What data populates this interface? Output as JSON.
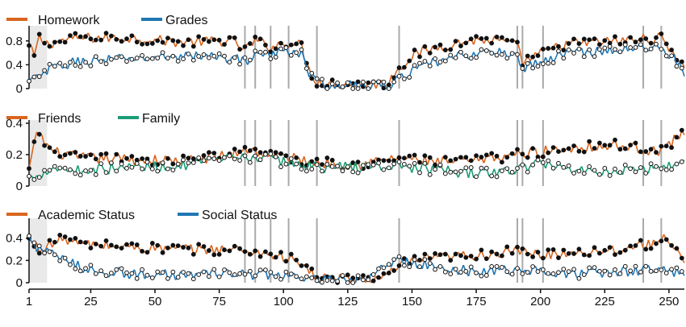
{
  "chart_data": {
    "type": "line",
    "x_range": [
      1,
      256
    ],
    "x_ticks": [
      1,
      25,
      50,
      75,
      100,
      125,
      150,
      175,
      200,
      225,
      250
    ],
    "shaded_x_range": [
      1,
      8
    ],
    "vertical_marker_x": [
      85,
      89,
      95,
      102,
      113,
      145,
      191,
      193,
      201,
      240,
      247
    ],
    "colors": {
      "orange": "#d9661f",
      "blue": "#1f77b4",
      "green": "#1b9e77",
      "dark": "#111111",
      "marker_line": "#aaaaaa",
      "shade": "#e9e9e9"
    },
    "panels": [
      {
        "ylim": [
          0,
          1
        ],
        "y_ticks": [
          "0",
          "0.4",
          "0.8"
        ],
        "y_tick_values": [
          0,
          0.4,
          0.8
        ],
        "series": [
          {
            "name": "Homework",
            "color": "#d9661f",
            "marker": "filled",
            "keyframes": [
              [
                1,
                0.7
              ],
              [
                3,
                0.55
              ],
              [
                5,
                0.85
              ],
              [
                8,
                0.75
              ],
              [
                20,
                0.85
              ],
              [
                40,
                0.85
              ],
              [
                60,
                0.78
              ],
              [
                80,
                0.8
              ],
              [
                85,
                0.65
              ],
              [
                89,
                0.8
              ],
              [
                95,
                0.7
              ],
              [
                102,
                0.78
              ],
              [
                107,
                0.72
              ],
              [
                110,
                0.3
              ],
              [
                113,
                0.12
              ],
              [
                120,
                0.08
              ],
              [
                130,
                0.07
              ],
              [
                140,
                0.08
              ],
              [
                145,
                0.35
              ],
              [
                150,
                0.55
              ],
              [
                160,
                0.7
              ],
              [
                175,
                0.82
              ],
              [
                185,
                0.8
              ],
              [
                191,
                0.7
              ],
              [
                193,
                0.45
              ],
              [
                201,
                0.6
              ],
              [
                210,
                0.75
              ],
              [
                230,
                0.8
              ],
              [
                247,
                0.85
              ],
              [
                252,
                0.6
              ],
              [
                256,
                0.35
              ]
            ]
          },
          {
            "name": "Grades",
            "color": "#1f77b4",
            "marker": "open",
            "keyframes": [
              [
                1,
                0.1
              ],
              [
                5,
                0.2
              ],
              [
                10,
                0.35
              ],
              [
                20,
                0.45
              ],
              [
                40,
                0.5
              ],
              [
                60,
                0.55
              ],
              [
                80,
                0.52
              ],
              [
                85,
                0.45
              ],
              [
                89,
                0.6
              ],
              [
                95,
                0.55
              ],
              [
                102,
                0.65
              ],
              [
                107,
                0.6
              ],
              [
                110,
                0.25
              ],
              [
                113,
                0.08
              ],
              [
                120,
                0.05
              ],
              [
                130,
                0.04
              ],
              [
                140,
                0.05
              ],
              [
                145,
                0.15
              ],
              [
                150,
                0.3
              ],
              [
                160,
                0.45
              ],
              [
                175,
                0.6
              ],
              [
                185,
                0.6
              ],
              [
                191,
                0.55
              ],
              [
                193,
                0.35
              ],
              [
                201,
                0.45
              ],
              [
                210,
                0.6
              ],
              [
                230,
                0.65
              ],
              [
                247,
                0.7
              ],
              [
                252,
                0.5
              ],
              [
                256,
                0.28
              ]
            ]
          }
        ]
      },
      {
        "ylim": [
          0,
          0.4
        ],
        "y_ticks": [
          "0",
          "0.2",
          "0.4"
        ],
        "y_tick_values": [
          0,
          0.2,
          0.4
        ],
        "series": [
          {
            "name": "Friends",
            "color": "#d9661f",
            "marker": "filled",
            "keyframes": [
              [
                1,
                0.1
              ],
              [
                3,
                0.25
              ],
              [
                4,
                0.36
              ],
              [
                6,
                0.3
              ],
              [
                10,
                0.22
              ],
              [
                20,
                0.18
              ],
              [
                40,
                0.17
              ],
              [
                60,
                0.16
              ],
              [
                80,
                0.2
              ],
              [
                85,
                0.24
              ],
              [
                89,
                0.22
              ],
              [
                95,
                0.2
              ],
              [
                102,
                0.18
              ],
              [
                113,
                0.15
              ],
              [
                130,
                0.14
              ],
              [
                145,
                0.18
              ],
              [
                160,
                0.15
              ],
              [
                175,
                0.16
              ],
              [
                190,
                0.2
              ],
              [
                201,
                0.22
              ],
              [
                215,
                0.25
              ],
              [
                230,
                0.26
              ],
              [
                247,
                0.22
              ],
              [
                256,
                0.35
              ]
            ]
          },
          {
            "name": "Family",
            "color": "#1b9e77",
            "marker": "open",
            "keyframes": [
              [
                1,
                0.05
              ],
              [
                5,
                0.08
              ],
              [
                10,
                0.12
              ],
              [
                20,
                0.1
              ],
              [
                40,
                0.12
              ],
              [
                60,
                0.13
              ],
              [
                80,
                0.17
              ],
              [
                85,
                0.18
              ],
              [
                89,
                0.19
              ],
              [
                95,
                0.17
              ],
              [
                102,
                0.15
              ],
              [
                113,
                0.12
              ],
              [
                130,
                0.12
              ],
              [
                145,
                0.13
              ],
              [
                160,
                0.1
              ],
              [
                175,
                0.08
              ],
              [
                190,
                0.1
              ],
              [
                201,
                0.15
              ],
              [
                215,
                0.1
              ],
              [
                230,
                0.1
              ],
              [
                247,
                0.12
              ],
              [
                256,
                0.15
              ]
            ]
          }
        ]
      },
      {
        "ylim": [
          0,
          0.55
        ],
        "y_ticks": [
          "0",
          "0.2",
          "0.4"
        ],
        "y_tick_values": [
          0,
          0.2,
          0.4
        ],
        "series": [
          {
            "name": "Academic Status",
            "color": "#d9661f",
            "marker": "filled",
            "keyframes": [
              [
                1,
                0.38
              ],
              [
                5,
                0.3
              ],
              [
                10,
                0.35
              ],
              [
                15,
                0.4
              ],
              [
                20,
                0.35
              ],
              [
                40,
                0.32
              ],
              [
                60,
                0.3
              ],
              [
                80,
                0.3
              ],
              [
                89,
                0.28
              ],
              [
                102,
                0.22
              ],
              [
                108,
                0.15
              ],
              [
                113,
                0.04
              ],
              [
                120,
                0.03
              ],
              [
                130,
                0.03
              ],
              [
                140,
                0.05
              ],
              [
                145,
                0.15
              ],
              [
                150,
                0.2
              ],
              [
                160,
                0.22
              ],
              [
                175,
                0.25
              ],
              [
                190,
                0.28
              ],
              [
                201,
                0.25
              ],
              [
                210,
                0.27
              ],
              [
                230,
                0.3
              ],
              [
                243,
                0.35
              ],
              [
                247,
                0.42
              ],
              [
                252,
                0.3
              ],
              [
                256,
                0.15
              ]
            ]
          },
          {
            "name": "Social Status",
            "color": "#1f77b4",
            "marker": "open",
            "keyframes": [
              [
                1,
                0.4
              ],
              [
                5,
                0.3
              ],
              [
                10,
                0.25
              ],
              [
                20,
                0.15
              ],
              [
                30,
                0.1
              ],
              [
                40,
                0.08
              ],
              [
                60,
                0.07
              ],
              [
                80,
                0.08
              ],
              [
                95,
                0.07
              ],
              [
                102,
                0.06
              ],
              [
                108,
                0.04
              ],
              [
                113,
                0.02
              ],
              [
                130,
                0.02
              ],
              [
                145,
                0.2
              ],
              [
                150,
                0.18
              ],
              [
                160,
                0.14
              ],
              [
                175,
                0.1
              ],
              [
                190,
                0.12
              ],
              [
                201,
                0.1
              ],
              [
                215,
                0.08
              ],
              [
                230,
                0.1
              ],
              [
                247,
                0.12
              ],
              [
                256,
                0.08
              ]
            ]
          }
        ]
      }
    ]
  }
}
